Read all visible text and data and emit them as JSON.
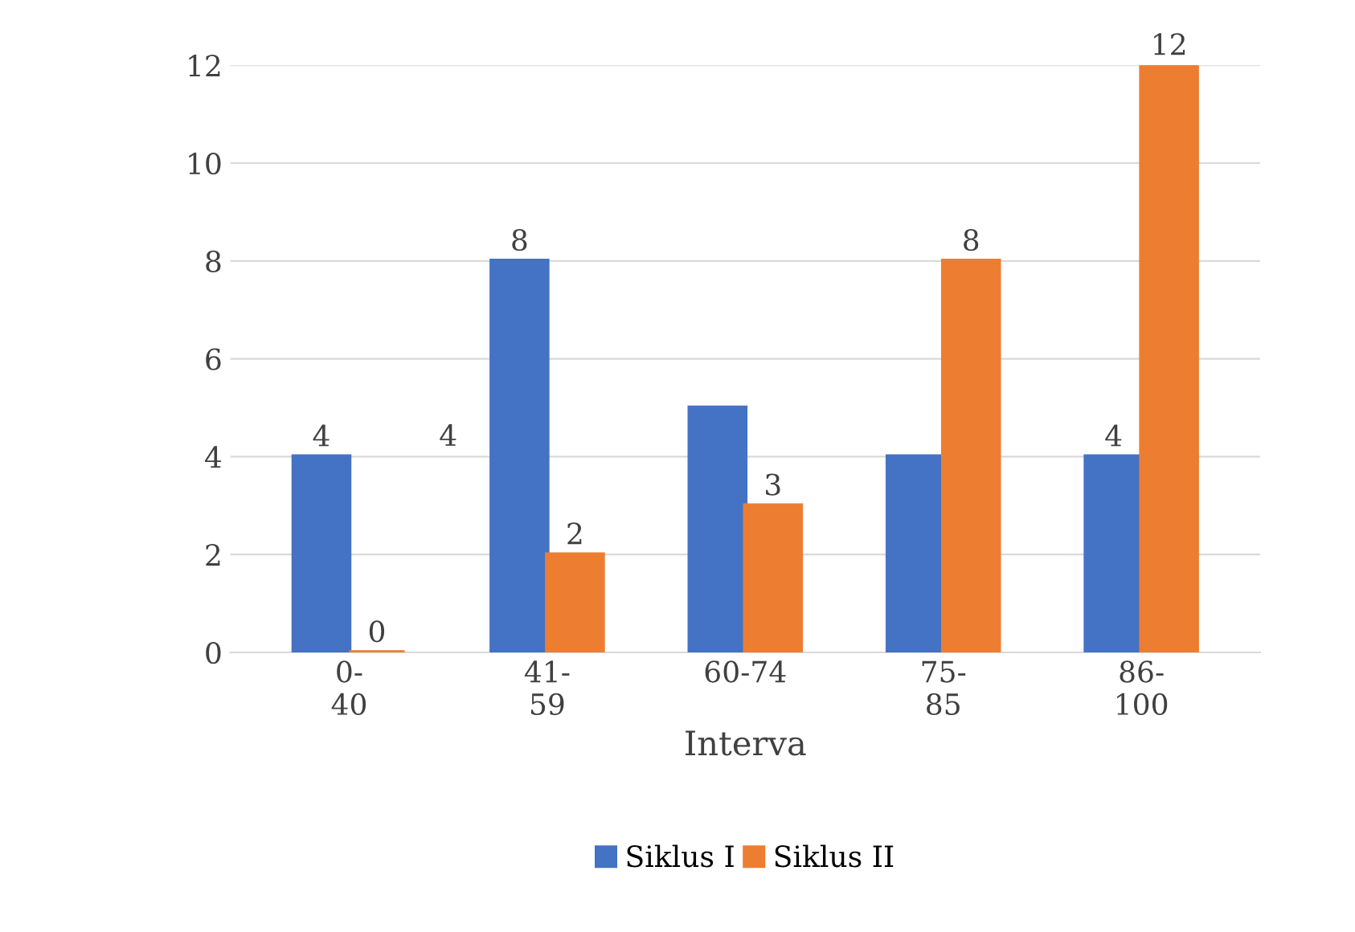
{
  "chart_data": {
    "type": "bar",
    "xlabel": "Interva",
    "categories": [
      "0-\n40",
      "41-\n59",
      "60-74",
      "75-\n85",
      "86-\n100"
    ],
    "series": [
      {
        "name": "Siklus I",
        "color": "#4472c4",
        "values": [
          4,
          8,
          5,
          4,
          4
        ],
        "value_labels": [
          "4",
          "8",
          null,
          null,
          "4"
        ]
      },
      {
        "name": "Siklus II",
        "color": "#ed7d31",
        "values": [
          0,
          2,
          3,
          8,
          12
        ],
        "value_labels": [
          "0",
          "2",
          "3",
          "8",
          "12"
        ]
      }
    ],
    "annotations": [
      "4"
    ],
    "ylim": [
      0,
      12
    ],
    "yticks": [
      0,
      2,
      4,
      6,
      8,
      10,
      12
    ],
    "grid": "y",
    "legend": "bottom"
  }
}
